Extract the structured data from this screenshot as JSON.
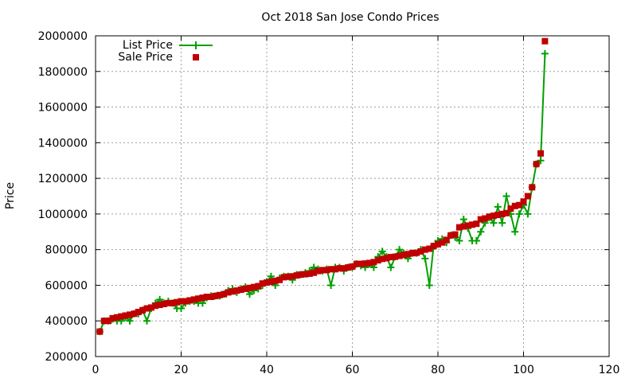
{
  "chart_data": {
    "type": "line",
    "title": "Oct 2018 San Jose Condo Prices",
    "xlabel": "",
    "ylabel": "Price",
    "xlim": [
      0,
      120
    ],
    "ylim": [
      200000,
      2000000
    ],
    "xticks": [
      0,
      20,
      40,
      60,
      80,
      100,
      120
    ],
    "yticks": [
      200000,
      400000,
      600000,
      800000,
      1000000,
      1200000,
      1400000,
      1600000,
      1800000,
      2000000
    ],
    "grid": true,
    "legend_position": "top-left",
    "series": [
      {
        "name": "List Price",
        "style": "linespoints",
        "marker": "plus",
        "color": "#00a000",
        "x": [
          1,
          2,
          3,
          4,
          5,
          6,
          7,
          8,
          9,
          10,
          11,
          12,
          13,
          14,
          15,
          16,
          17,
          18,
          19,
          20,
          21,
          22,
          23,
          24,
          25,
          26,
          27,
          28,
          29,
          30,
          31,
          32,
          33,
          34,
          35,
          36,
          37,
          38,
          39,
          40,
          41,
          42,
          43,
          44,
          45,
          46,
          47,
          48,
          49,
          50,
          51,
          52,
          53,
          54,
          55,
          56,
          57,
          58,
          59,
          60,
          61,
          62,
          63,
          64,
          65,
          66,
          67,
          68,
          69,
          70,
          71,
          72,
          73,
          74,
          75,
          76,
          77,
          78,
          79,
          80,
          81,
          82,
          83,
          84,
          85,
          86,
          87,
          88,
          89,
          90,
          91,
          92,
          93,
          94,
          95,
          96,
          97,
          98,
          99,
          100,
          101,
          102,
          103,
          104,
          105
        ],
        "values": [
          340000,
          400000,
          400000,
          410000,
          400000,
          400000,
          420000,
          400000,
          440000,
          440000,
          460000,
          400000,
          470000,
          500000,
          520000,
          500000,
          510000,
          500000,
          470000,
          470000,
          500000,
          510000,
          510000,
          500000,
          500000,
          530000,
          540000,
          540000,
          540000,
          550000,
          570000,
          580000,
          560000,
          580000,
          590000,
          550000,
          570000,
          580000,
          600000,
          620000,
          650000,
          600000,
          640000,
          650000,
          650000,
          630000,
          660000,
          660000,
          670000,
          680000,
          700000,
          690000,
          680000,
          690000,
          600000,
          700000,
          700000,
          680000,
          700000,
          700000,
          720000,
          710000,
          700000,
          720000,
          700000,
          760000,
          790000,
          760000,
          700000,
          760000,
          800000,
          780000,
          750000,
          780000,
          780000,
          800000,
          750000,
          600000,
          820000,
          850000,
          860000,
          840000,
          880000,
          870000,
          850000,
          970000,
          920000,
          850000,
          850000,
          900000,
          950000,
          980000,
          950000,
          1040000,
          950000,
          1100000,
          1000000,
          900000,
          1000000,
          1050000,
          1000000,
          1150000,
          1280000,
          1300000,
          1900000
        ]
      },
      {
        "name": "Sale Price",
        "style": "points",
        "marker": "square",
        "color": "#c00000",
        "x": [
          1,
          2,
          3,
          4,
          5,
          6,
          7,
          8,
          9,
          10,
          11,
          12,
          13,
          14,
          15,
          16,
          17,
          18,
          19,
          20,
          21,
          22,
          23,
          24,
          25,
          26,
          27,
          28,
          29,
          30,
          31,
          32,
          33,
          34,
          35,
          36,
          37,
          38,
          39,
          40,
          41,
          42,
          43,
          44,
          45,
          46,
          47,
          48,
          49,
          50,
          51,
          52,
          53,
          54,
          55,
          56,
          57,
          58,
          59,
          60,
          61,
          62,
          63,
          64,
          65,
          66,
          67,
          68,
          69,
          70,
          71,
          72,
          73,
          74,
          75,
          76,
          77,
          78,
          79,
          80,
          81,
          82,
          83,
          84,
          85,
          86,
          87,
          88,
          89,
          90,
          91,
          92,
          93,
          94,
          95,
          96,
          97,
          98,
          99,
          100,
          101,
          102,
          103,
          104,
          105
        ],
        "values": [
          340000,
          400000,
          400000,
          415000,
          420000,
          425000,
          430000,
          435000,
          440000,
          450000,
          460000,
          470000,
          475000,
          485000,
          490000,
          495000,
          500000,
          500000,
          505000,
          510000,
          510000,
          515000,
          520000,
          525000,
          530000,
          535000,
          535000,
          540000,
          545000,
          550000,
          560000,
          565000,
          570000,
          575000,
          580000,
          585000,
          590000,
          595000,
          610000,
          615000,
          620000,
          625000,
          630000,
          645000,
          648000,
          650000,
          655000,
          660000,
          662000,
          665000,
          670000,
          680000,
          685000,
          685000,
          690000,
          690000,
          695000,
          695000,
          700000,
          705000,
          720000,
          720000,
          722000,
          725000,
          730000,
          740000,
          748000,
          752000,
          758000,
          760000,
          765000,
          770000,
          775000,
          780000,
          782000,
          790000,
          800000,
          805000,
          820000,
          830000,
          840000,
          855000,
          880000,
          885000,
          925000,
          930000,
          935000,
          940000,
          945000,
          970000,
          975000,
          985000,
          990000,
          995000,
          1000000,
          1005000,
          1030000,
          1045000,
          1050000,
          1070000,
          1100000,
          1150000,
          1280000,
          1340000,
          1970000
        ]
      }
    ]
  }
}
